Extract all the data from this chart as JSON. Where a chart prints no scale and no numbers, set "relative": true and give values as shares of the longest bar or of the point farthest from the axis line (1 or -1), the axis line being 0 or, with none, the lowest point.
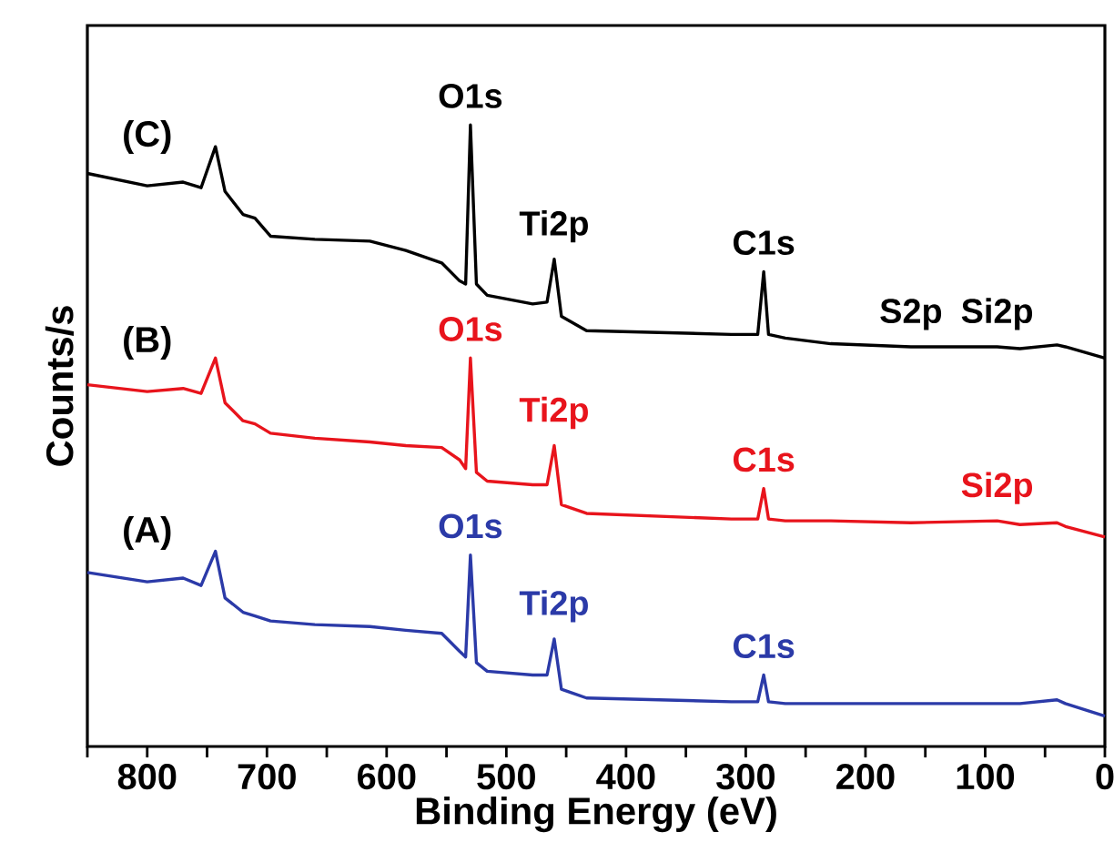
{
  "chart_data": {
    "type": "line",
    "relative": true,
    "xlabel": "Binding Energy (eV)",
    "ylabel": "Counts/s",
    "x": [
      850,
      800,
      770,
      755,
      743,
      735,
      720,
      710,
      697,
      660,
      614,
      584,
      554,
      539,
      534,
      530,
      525,
      516,
      478,
      466,
      460,
      454,
      433,
      312,
      290,
      285,
      281,
      267,
      229,
      162,
      90,
      71,
      40,
      33,
      0
    ],
    "xlim": [
      850,
      0
    ],
    "xticks": [
      {
        "value": 850,
        "label": null
      },
      800,
      {
        "value": 750,
        "label": null
      },
      700,
      {
        "value": 650,
        "label": null
      },
      600,
      {
        "value": 550,
        "label": null
      },
      500,
      {
        "value": 450,
        "label": null
      },
      400,
      {
        "value": 350,
        "label": null
      },
      300,
      {
        "value": 250,
        "label": null
      },
      200,
      {
        "value": 150,
        "label": null
      },
      100,
      {
        "value": 50,
        "label": null
      },
      0
    ],
    "grid": false,
    "legend": false,
    "marker": "none",
    "line_style": "solid",
    "series": [
      {
        "name": "(C)",
        "color": "#000000",
        "values": [
          0.922,
          0.902,
          0.908,
          0.899,
          0.965,
          0.893,
          0.856,
          0.85,
          0.821,
          0.816,
          0.813,
          0.798,
          0.778,
          0.749,
          0.744,
          1,
          0.744,
          0.726,
          0.712,
          0.715,
          0.784,
          0.692,
          0.669,
          0.663,
          0.663,
          0.764,
          0.663,
          0.657,
          0.648,
          0.643,
          0.643,
          0.64,
          0.646,
          0.643,
          0.625
        ]
      },
      {
        "name": "(B)",
        "color": "#e8141c",
        "values": [
          0.582,
          0.571,
          0.576,
          0.568,
          0.625,
          0.553,
          0.524,
          0.519,
          0.504,
          0.496,
          0.49,
          0.484,
          0.481,
          0.461,
          0.447,
          0.625,
          0.441,
          0.427,
          0.421,
          0.421,
          0.484,
          0.389,
          0.375,
          0.366,
          0.366,
          0.415,
          0.366,
          0.363,
          0.363,
          0.36,
          0.363,
          0.357,
          0.36,
          0.354,
          0.337
        ]
      },
      {
        "name": "(A)",
        "color": "#2b3aa8",
        "values": [
          0.28,
          0.265,
          0.271,
          0.259,
          0.314,
          0.239,
          0.216,
          0.21,
          0.202,
          0.196,
          0.193,
          0.187,
          0.182,
          0.153,
          0.144,
          0.308,
          0.135,
          0.121,
          0.115,
          0.115,
          0.173,
          0.092,
          0.078,
          0.072,
          0.072,
          0.115,
          0.072,
          0.069,
          0.069,
          0.069,
          0.069,
          0.069,
          0.075,
          0.069,
          0.049
        ]
      }
    ],
    "annotations": [
      {
        "text": "O1s",
        "x": 530,
        "y": 1
      },
      {
        "text": "Ti2p",
        "x": 460,
        "y": 0.784
      },
      {
        "text": "C1s",
        "x": 285,
        "y": 0.764
      },
      {
        "text": "S2p",
        "x": 162,
        "y": 0.643
      },
      {
        "text": "Si2p",
        "x": 90,
        "y": 0.643
      },
      {
        "text": "O1s",
        "x": 530,
        "y": 0.625
      },
      {
        "text": "Ti2p",
        "x": 460,
        "y": 0.484
      },
      {
        "text": "C1s",
        "x": 285,
        "y": 0.415
      },
      {
        "text": "Si2p",
        "x": 90,
        "y": 0.363
      },
      {
        "text": "O1s",
        "x": 530,
        "y": 0.308
      },
      {
        "text": "Ti2p",
        "x": 460,
        "y": 0.173
      },
      {
        "text": "C1s",
        "x": 285,
        "y": 0.115
      }
    ]
  }
}
